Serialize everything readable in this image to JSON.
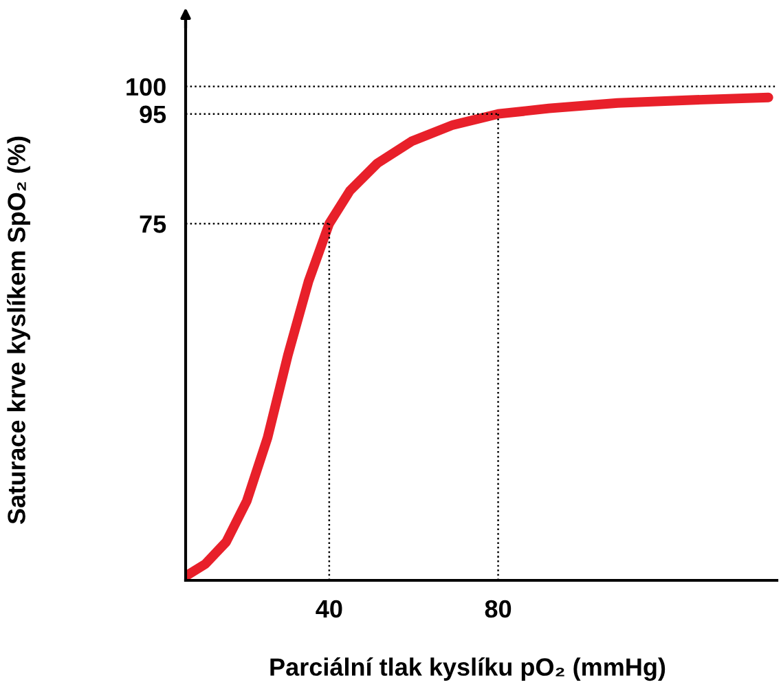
{
  "chart_data": {
    "type": "line",
    "xlabel": "Parciální tlak kyslíku pO₂ (mmHg)",
    "ylabel": "Saturace krve kyslíkem SpO₂ (%)",
    "xlim": [
      6,
      146
    ],
    "ylim": [
      10,
      112
    ],
    "xticks": [
      40,
      80
    ],
    "yticks": [
      75,
      95,
      100
    ],
    "series": [
      {
        "color": "#e8202a",
        "x": [
          6.5,
          10.7,
          15.6,
          20.5,
          25.4,
          30.2,
          35.1,
          40,
          44.9,
          51.4,
          59.5,
          69.3,
          80,
          92,
          108.3,
          124.6,
          144
        ],
        "values": [
          11,
          13,
          17,
          24.5,
          36,
          51,
          64.5,
          75,
          81,
          86,
          90,
          93,
          95,
          96,
          97,
          97.5,
          98
        ]
      }
    ],
    "ref_lines": [
      {
        "axis": "y",
        "value": 100,
        "color": "#000000",
        "line_style": "dotted"
      },
      {
        "axis": "y",
        "value": 95,
        "color": "#000000",
        "line_style": "dotted"
      },
      {
        "axis": "y",
        "value": 75,
        "color": "#000000",
        "line_style": "dotted"
      },
      {
        "axis": "x",
        "value": 40,
        "color": "#000000",
        "line_style": "dotted"
      },
      {
        "axis": "x",
        "value": 80,
        "color": "#000000",
        "line_style": "dotted"
      }
    ]
  }
}
